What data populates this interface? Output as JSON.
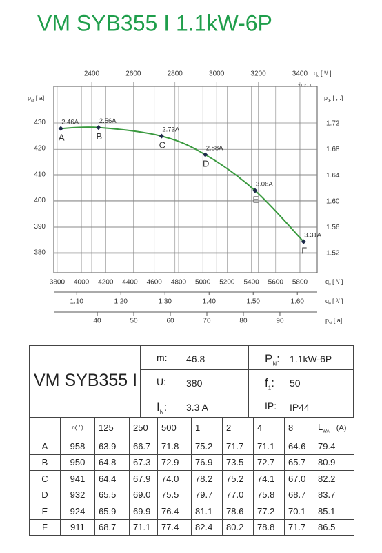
{
  "header": {
    "title": "VM SYB355 I 1.1kW-6P"
  },
  "chart_data": {
    "type": "line",
    "color": "#3a9a3f",
    "marker_color": "#1f2b4a",
    "grid": true,
    "x": [
      3830,
      4140,
      4660,
      5020,
      5430,
      5830
    ],
    "values": [
      427.6,
      428,
      424.7,
      417.6,
      403.8,
      384.2
    ],
    "point_labels": [
      "A",
      "B",
      "C",
      "D",
      "E",
      "F"
    ],
    "annotations": [
      "2.46A",
      "2.56A",
      "2.73A",
      "2.88A",
      "3.06A",
      "3.31A"
    ],
    "xlim": [
      3772,
      5942
    ],
    "xticks": [
      3800,
      4000,
      4200,
      4400,
      4600,
      4800,
      5000,
      5200,
      5400,
      5600,
      5800
    ],
    "xlabel": {
      "text": "q",
      "sub": "v",
      "unit": "[   ³/   ]"
    },
    "ylim": [
      372.3,
      443.8
    ],
    "yticks": [
      380,
      390,
      400,
      410,
      420,
      430
    ],
    "ylabel": {
      "text": "p",
      "sub": "sf",
      "unit": "[   a]"
    },
    "x2lim": [
      2218,
      3483
    ],
    "x2ticks": [
      2400,
      2600,
      2800,
      3000,
      3200,
      3400
    ],
    "x2label": {
      "text": "q",
      "sub": "v",
      "unit": "[   ³/   ]",
      "note": "×1.2  /  1"
    },
    "y2lim": [
      1.4902,
      1.7774
    ],
    "y2ticks": [
      1.52,
      1.56,
      {
        "value": 1.6,
        "label": "1.60"
      },
      1.64,
      1.68,
      1.72
    ],
    "y2label": {
      "text": "p",
      "sub": "tF",
      "unit": "[        ,      .]"
    },
    "x3lim": [
      1.048,
      1.645
    ],
    "x3ticks": [
      {
        "value": 1.1,
        "label": "1.10"
      },
      {
        "value": 1.2,
        "label": "1.20"
      },
      {
        "value": 1.3,
        "label": "1.30"
      },
      {
        "value": 1.4,
        "label": "1.40"
      },
      {
        "value": 1.5,
        "label": "1.50"
      },
      {
        "value": 1.6,
        "label": "1.60"
      }
    ],
    "x3label": {
      "text": "q",
      "sub": "v",
      "unit": "[   ³/   ]"
    },
    "x4lim": [
      28.1,
      100.2
    ],
    "x4ticks": [
      40,
      50,
      60,
      70,
      80,
      90
    ],
    "x4label": {
      "text": "p",
      "sub": "sf",
      "unit": "[   a]"
    }
  },
  "spec": {
    "model": "VM SYB355 I",
    "items": [
      {
        "label": "m:",
        "value": "46.8"
      },
      {
        "label": "P",
        "sub": "N",
        "sep": ":",
        "value": "1.1kW-6P"
      },
      {
        "label": "U:",
        "value": "380"
      },
      {
        "label": "f",
        "sub": "1",
        "sep": ":",
        "value": "50"
      },
      {
        "label": "I",
        "sub": "N",
        "sep": ":",
        "value": "3.3  A"
      },
      {
        "label": "IP:",
        "value": "IP44"
      }
    ]
  },
  "table": {
    "header": [
      "n(  /  )",
      "125",
      "250",
      "500",
      "1",
      "2",
      "4",
      "8"
    ],
    "lwa": {
      "text": "L",
      "sub": "WA",
      "unit": "(A)"
    },
    "rows": [
      [
        "A",
        "958",
        "63.9",
        "66.7",
        "71.8",
        "75.2",
        "71.7",
        "71.1",
        "64.6",
        "79.4"
      ],
      [
        "B",
        "950",
        "64.8",
        "67.3",
        "72.9",
        "76.9",
        "73.5",
        "72.7",
        "65.7",
        "80.9"
      ],
      [
        "C",
        "941",
        "64.4",
        "67.9",
        "74.0",
        "78.2",
        "75.2",
        "74.1",
        "67.0",
        "82.2"
      ],
      [
        "D",
        "932",
        "65.5",
        "69.0",
        "75.5",
        "79.7",
        "77.0",
        "75.8",
        "68.7",
        "83.7"
      ],
      [
        "E",
        "924",
        "65.9",
        "69.9",
        "76.4",
        "81.1",
        "78.6",
        "77.2",
        "70.1",
        "85.1"
      ],
      [
        "F",
        "911",
        "68.7",
        "71.1",
        "77.4",
        "82.4",
        "80.2",
        "78.8",
        "71.7",
        "86.5"
      ]
    ]
  }
}
